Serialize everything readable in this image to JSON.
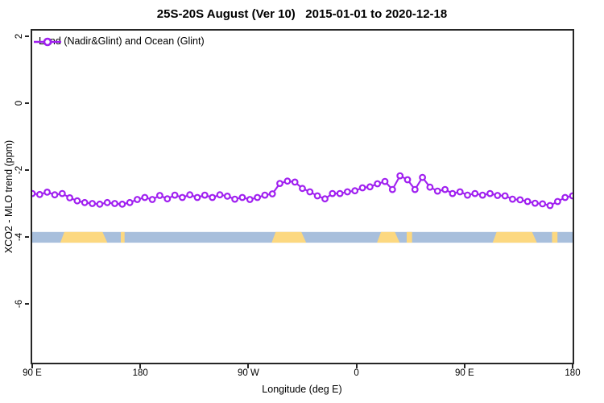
{
  "chart_data": {
    "type": "line",
    "title": "25S-20S August (Ver 10)   2015-01-01 to 2020-12-18",
    "xlabel": "Longitude (deg E)",
    "ylabel": "XCO2 - MLO trend (ppm)",
    "x_tick_labels": [
      "90 E",
      "180",
      "90 W",
      "0",
      "90 E",
      "180"
    ],
    "y_tick_values": [
      2,
      0,
      -2,
      -4,
      -6
    ],
    "y_tick_labels": [
      "2",
      "0",
      "-2",
      "-4",
      "-6"
    ],
    "ylim": [
      -7.8,
      2.2
    ],
    "x_span_deg": 450,
    "grid": "off",
    "legend_position": "top-left",
    "series": [
      {
        "name": "Land (Nadir&Glint) and Ocean (Glint)",
        "color": "#A020F0",
        "marker": "open-circle",
        "values": [
          -2.7,
          -2.73,
          -2.66,
          -2.74,
          -2.7,
          -2.83,
          -2.92,
          -2.97,
          -3.0,
          -3.02,
          -2.97,
          -3.0,
          -3.02,
          -2.97,
          -2.88,
          -2.82,
          -2.88,
          -2.76,
          -2.86,
          -2.75,
          -2.82,
          -2.74,
          -2.82,
          -2.75,
          -2.82,
          -2.74,
          -2.78,
          -2.87,
          -2.82,
          -2.88,
          -2.82,
          -2.75,
          -2.71,
          -2.4,
          -2.33,
          -2.36,
          -2.55,
          -2.65,
          -2.77,
          -2.86,
          -2.7,
          -2.7,
          -2.65,
          -2.62,
          -2.53,
          -2.5,
          -2.41,
          -2.34,
          -2.58,
          -2.17,
          -2.29,
          -2.58,
          -2.22,
          -2.51,
          -2.63,
          -2.58,
          -2.7,
          -2.65,
          -2.75,
          -2.7,
          -2.75,
          -2.7,
          -2.76,
          -2.77,
          -2.87,
          -2.89,
          -2.94,
          -2.99,
          -3.01,
          -3.06,
          -2.94,
          -2.82,
          -2.77
        ]
      }
    ],
    "map_strip": {
      "ocean_color": "#A8BFDC",
      "land_color": "#FCD880",
      "value_top": -3.85,
      "value_bottom": -4.17,
      "land_segments_frac": [
        [
          0.052,
          0.139
        ],
        [
          0.164,
          0.171
        ],
        [
          0.443,
          0.507
        ],
        [
          0.638,
          0.68
        ],
        [
          0.693,
          0.703
        ],
        [
          0.852,
          0.934
        ],
        [
          0.962,
          0.972
        ]
      ]
    },
    "colors": {
      "axis": "#262626",
      "background": "#ffffff"
    }
  }
}
